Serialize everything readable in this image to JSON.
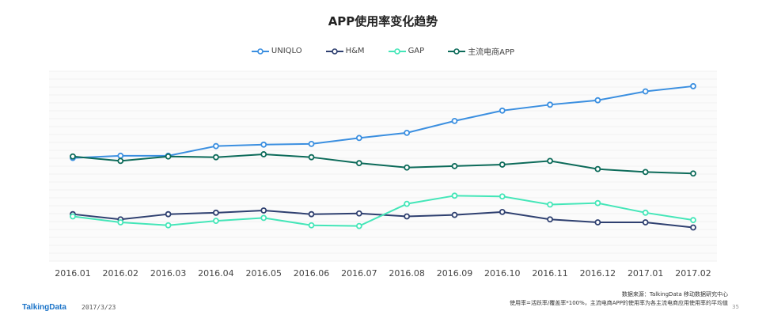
{
  "chart_data": {
    "type": "line",
    "title": "APP使用率变化趋势",
    "categories": [
      "2016.01",
      "2016.02",
      "2016.03",
      "2016.04",
      "2016.05",
      "2016.06",
      "2016.07",
      "2016.08",
      "2016.09",
      "2016.10",
      "2016.11",
      "2016.12",
      "2017.01",
      "2017.02"
    ],
    "ylim": [
      0,
      100
    ],
    "grid": true,
    "legend_position": "top-center",
    "series": [
      {
        "name": "UNIQLO",
        "color": "#3b8fe0",
        "values": [
          51,
          52.5,
          52.5,
          59,
          60,
          60.5,
          64.5,
          68,
          76,
          83,
          87,
          90,
          96,
          99.5
        ]
      },
      {
        "name": "H&M",
        "color": "#2f4070",
        "values": [
          13,
          9.5,
          13,
          14,
          15.5,
          13,
          13.5,
          11.5,
          12.5,
          14.5,
          9.5,
          7.5,
          7.5,
          4
        ]
      },
      {
        "name": "GAP",
        "color": "#44e6b8",
        "values": [
          11.5,
          7.5,
          5.5,
          8.5,
          10.5,
          5.5,
          5,
          20,
          25.5,
          25,
          19.5,
          20.5,
          14,
          9
        ]
      },
      {
        "name": "主流电商APP",
        "color": "#0d6b5a",
        "values": [
          52,
          49,
          52,
          51.5,
          53.5,
          51.5,
          47.5,
          44.5,
          45.5,
          46.5,
          49,
          43.5,
          41.5,
          40.5
        ]
      }
    ]
  },
  "footer": {
    "brand": "TalkingData",
    "date": "2017/3/23",
    "source_line1": "数据来源：TalkingData 移动数据研究中心",
    "source_line2": "使用率=活跃率/覆盖率*100%，主流电商APP的使用率为各主流电商应用使用率的平均值",
    "page_number": "35"
  }
}
